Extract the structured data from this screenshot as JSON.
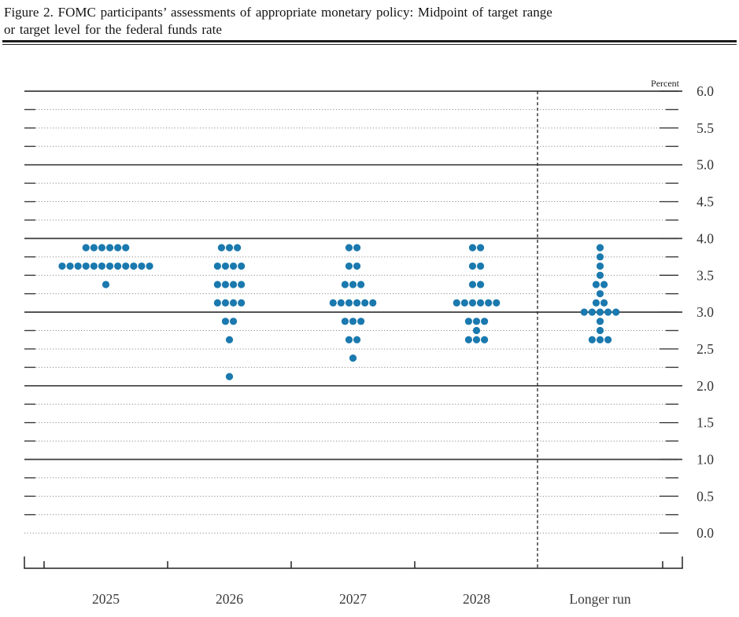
{
  "figure": {
    "title_line1": "Figure 2. FOMC participants’ assessments of appropriate monetary policy: Midpoint of target range",
    "title_line2": "or target level for the federal funds rate"
  },
  "chart_data": {
    "type": "scatter",
    "subtype": "fomc-dot-plot",
    "title": "Figure 2. FOMC participants’ assessments of appropriate monetary policy: Midpoint of target range or target level for the federal funds rate",
    "ylabel": "Percent",
    "xlabel": "",
    "ylim": [
      0.0,
      6.0
    ],
    "y_tick_step": 0.25,
    "grid": "solid lines at whole percents, dotted lines at quarter percents",
    "legend": "none",
    "y_major_solid_gridlines": [
      6.0,
      5.0,
      4.0,
      3.0,
      2.0,
      1.0
    ],
    "y_dotted_gridlines": [
      5.75,
      5.5,
      5.25,
      4.75,
      4.5,
      4.25,
      3.75,
      3.5,
      3.25,
      2.75,
      2.5,
      2.25,
      1.75,
      1.5,
      1.25,
      0.75,
      0.5,
      0.25,
      0.0
    ],
    "y_tick_labels": [
      {
        "value": 6.0,
        "label": "6.0"
      },
      {
        "value": 5.5,
        "label": "5.5"
      },
      {
        "value": 5.0,
        "label": "5.0"
      },
      {
        "value": 4.5,
        "label": "4.5"
      },
      {
        "value": 4.0,
        "label": "4.0"
      },
      {
        "value": 3.5,
        "label": "3.5"
      },
      {
        "value": 3.0,
        "label": "3.0"
      },
      {
        "value": 2.5,
        "label": "2.5"
      },
      {
        "value": 2.0,
        "label": "2.0"
      },
      {
        "value": 1.5,
        "label": "1.5"
      },
      {
        "value": 1.0,
        "label": "1.0"
      },
      {
        "value": 0.5,
        "label": "0.5"
      },
      {
        "value": 0.0,
        "label": "0.0"
      }
    ],
    "categories": [
      "2025",
      "2026",
      "2027",
      "2028",
      "Longer run"
    ],
    "separator_before_category": "Longer run",
    "dot_color": "#1a79ae",
    "series": [
      {
        "name": "2025",
        "dots": [
          {
            "rate": 3.875,
            "count": 6
          },
          {
            "rate": 3.625,
            "count": 12
          },
          {
            "rate": 3.375,
            "count": 1
          }
        ]
      },
      {
        "name": "2026",
        "dots": [
          {
            "rate": 3.875,
            "count": 3
          },
          {
            "rate": 3.625,
            "count": 4
          },
          {
            "rate": 3.375,
            "count": 4
          },
          {
            "rate": 3.125,
            "count": 4
          },
          {
            "rate": 2.875,
            "count": 2
          },
          {
            "rate": 2.625,
            "count": 1
          },
          {
            "rate": 2.125,
            "count": 1
          }
        ]
      },
      {
        "name": "2027",
        "dots": [
          {
            "rate": 3.875,
            "count": 2
          },
          {
            "rate": 3.625,
            "count": 2
          },
          {
            "rate": 3.375,
            "count": 3
          },
          {
            "rate": 3.125,
            "count": 6
          },
          {
            "rate": 2.875,
            "count": 3
          },
          {
            "rate": 2.625,
            "count": 2
          },
          {
            "rate": 2.375,
            "count": 1
          }
        ]
      },
      {
        "name": "2028",
        "dots": [
          {
            "rate": 3.875,
            "count": 2
          },
          {
            "rate": 3.625,
            "count": 2
          },
          {
            "rate": 3.375,
            "count": 2
          },
          {
            "rate": 3.125,
            "count": 6
          },
          {
            "rate": 2.875,
            "count": 3
          },
          {
            "rate": 2.75,
            "count": 1
          },
          {
            "rate": 2.625,
            "count": 3
          }
        ]
      },
      {
        "name": "Longer run",
        "dots": [
          {
            "rate": 3.875,
            "count": 1
          },
          {
            "rate": 3.75,
            "count": 1
          },
          {
            "rate": 3.625,
            "count": 1
          },
          {
            "rate": 3.5,
            "count": 1
          },
          {
            "rate": 3.375,
            "count": 2
          },
          {
            "rate": 3.25,
            "count": 1
          },
          {
            "rate": 3.125,
            "count": 2
          },
          {
            "rate": 3.0,
            "count": 5
          },
          {
            "rate": 2.875,
            "count": 1
          },
          {
            "rate": 2.75,
            "count": 1
          },
          {
            "rate": 2.625,
            "count": 3
          }
        ]
      }
    ]
  }
}
